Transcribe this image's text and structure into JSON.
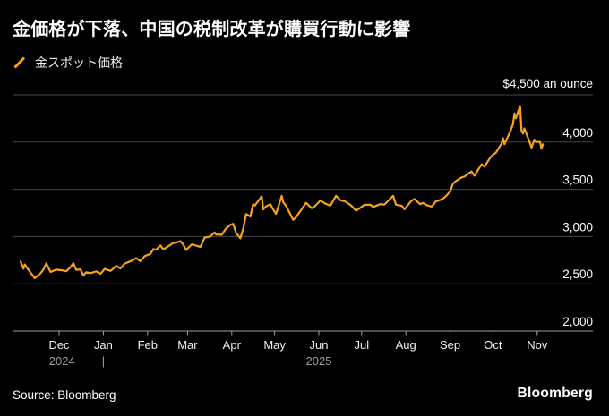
{
  "header": {
    "title": "金価格が下落、中国の税制改革が購買行動に影響",
    "legend": [
      {
        "label": "金スポット価格",
        "marker": "slash-icon",
        "color": "#F5A31E"
      }
    ]
  },
  "footer": {
    "source": "Source: Bloomberg",
    "brand": "Bloomberg"
  },
  "colors": {
    "background": "#000000",
    "accent_orange": "#F5A31E",
    "grid": "#474747",
    "axis": "#A0A0A0",
    "text_primary": "#FFFFFF",
    "text_secondary": "#9E9E9E"
  },
  "chart_data": {
    "type": "line",
    "title": "金価格が下落、中国の税制改革が購買行動に影響",
    "legend_position": "top-left",
    "grid": true,
    "series": [
      {
        "name": "金スポット価格",
        "color": "#F5A31E",
        "points": [
          [
            "2024-11-04",
            2737
          ],
          [
            "2024-11-06",
            2660
          ],
          [
            "2024-11-07",
            2705
          ],
          [
            "2024-11-11",
            2618
          ],
          [
            "2024-11-14",
            2560
          ],
          [
            "2024-11-18",
            2612
          ],
          [
            "2024-11-20",
            2651
          ],
          [
            "2024-11-22",
            2716
          ],
          [
            "2024-11-25",
            2626
          ],
          [
            "2024-11-27",
            2636
          ],
          [
            "2024-11-29",
            2650
          ],
          [
            "2024-12-03",
            2643
          ],
          [
            "2024-12-06",
            2633
          ],
          [
            "2024-12-09",
            2676
          ],
          [
            "2024-12-11",
            2718
          ],
          [
            "2024-12-13",
            2648
          ],
          [
            "2024-12-16",
            2652
          ],
          [
            "2024-12-18",
            2585
          ],
          [
            "2024-12-20",
            2622
          ],
          [
            "2024-12-23",
            2613
          ],
          [
            "2024-12-27",
            2632
          ],
          [
            "2024-12-30",
            2606
          ],
          [
            "2025-01-02",
            2658
          ],
          [
            "2025-01-06",
            2636
          ],
          [
            "2025-01-08",
            2662
          ],
          [
            "2025-01-10",
            2690
          ],
          [
            "2025-01-13",
            2663
          ],
          [
            "2025-01-16",
            2714
          ],
          [
            "2025-01-21",
            2745
          ],
          [
            "2025-01-24",
            2771
          ],
          [
            "2025-01-27",
            2741
          ],
          [
            "2025-01-30",
            2794
          ],
          [
            "2025-02-03",
            2815
          ],
          [
            "2025-02-05",
            2867
          ],
          [
            "2025-02-07",
            2861
          ],
          [
            "2025-02-10",
            2906
          ],
          [
            "2025-02-12",
            2865
          ],
          [
            "2025-02-14",
            2883
          ],
          [
            "2025-02-19",
            2933
          ],
          [
            "2025-02-21",
            2936
          ],
          [
            "2025-02-24",
            2951
          ],
          [
            "2025-02-26",
            2916
          ],
          [
            "2025-02-28",
            2858
          ],
          [
            "2025-03-04",
            2918
          ],
          [
            "2025-03-06",
            2909
          ],
          [
            "2025-03-10",
            2889
          ],
          [
            "2025-03-13",
            2989
          ],
          [
            "2025-03-17",
            3001
          ],
          [
            "2025-03-20",
            3044
          ],
          [
            "2025-03-21",
            3022
          ],
          [
            "2025-03-25",
            3019
          ],
          [
            "2025-03-28",
            3085
          ],
          [
            "2025-03-31",
            3123
          ],
          [
            "2025-04-02",
            3134
          ],
          [
            "2025-04-04",
            3038
          ],
          [
            "2025-04-07",
            2982
          ],
          [
            "2025-04-09",
            3083
          ],
          [
            "2025-04-11",
            3238
          ],
          [
            "2025-04-14",
            3211
          ],
          [
            "2025-04-16",
            3343
          ],
          [
            "2025-04-17",
            3327
          ],
          [
            "2025-04-22",
            3426
          ],
          [
            "2025-04-23",
            3288
          ],
          [
            "2025-04-25",
            3319
          ],
          [
            "2025-04-28",
            3343
          ],
          [
            "2025-04-30",
            3289
          ],
          [
            "2025-05-02",
            3240
          ],
          [
            "2025-05-06",
            3431
          ],
          [
            "2025-05-07",
            3364
          ],
          [
            "2025-05-09",
            3325
          ],
          [
            "2025-05-12",
            3236
          ],
          [
            "2025-05-14",
            3177
          ],
          [
            "2025-05-16",
            3203
          ],
          [
            "2025-05-20",
            3290
          ],
          [
            "2025-05-23",
            3357
          ],
          [
            "2025-05-27",
            3300
          ],
          [
            "2025-05-29",
            3317
          ],
          [
            "2025-06-02",
            3381
          ],
          [
            "2025-06-05",
            3353
          ],
          [
            "2025-06-09",
            3327
          ],
          [
            "2025-06-13",
            3432
          ],
          [
            "2025-06-16",
            3385
          ],
          [
            "2025-06-20",
            3368
          ],
          [
            "2025-06-24",
            3324
          ],
          [
            "2025-06-27",
            3274
          ],
          [
            "2025-06-30",
            3303
          ],
          [
            "2025-07-03",
            3336
          ],
          [
            "2025-07-07",
            3337
          ],
          [
            "2025-07-09",
            3313
          ],
          [
            "2025-07-14",
            3343
          ],
          [
            "2025-07-17",
            3339
          ],
          [
            "2025-07-23",
            3431
          ],
          [
            "2025-07-25",
            3337
          ],
          [
            "2025-07-29",
            3326
          ],
          [
            "2025-07-31",
            3289
          ],
          [
            "2025-08-05",
            3381
          ],
          [
            "2025-08-07",
            3397
          ],
          [
            "2025-08-11",
            3343
          ],
          [
            "2025-08-13",
            3356
          ],
          [
            "2025-08-15",
            3336
          ],
          [
            "2025-08-19",
            3316
          ],
          [
            "2025-08-22",
            3372
          ],
          [
            "2025-08-26",
            3393
          ],
          [
            "2025-08-28",
            3414
          ],
          [
            "2025-09-01",
            3476
          ],
          [
            "2025-09-03",
            3560
          ],
          [
            "2025-09-05",
            3587
          ],
          [
            "2025-09-09",
            3626
          ],
          [
            "2025-09-11",
            3634
          ],
          [
            "2025-09-16",
            3689
          ],
          [
            "2025-09-18",
            3644
          ],
          [
            "2025-09-23",
            3764
          ],
          [
            "2025-09-25",
            3740
          ],
          [
            "2025-09-29",
            3833
          ],
          [
            "2025-10-01",
            3866
          ],
          [
            "2025-10-03",
            3886
          ],
          [
            "2025-10-07",
            3983
          ],
          [
            "2025-10-08",
            4042
          ],
          [
            "2025-10-09",
            3976
          ],
          [
            "2025-10-13",
            4110
          ],
          [
            "2025-10-15",
            4190
          ],
          [
            "2025-10-16",
            4304
          ],
          [
            "2025-10-17",
            4251
          ],
          [
            "2025-10-20",
            4381
          ],
          [
            "2025-10-21",
            4120
          ],
          [
            "2025-10-22",
            4090
          ],
          [
            "2025-10-23",
            4145
          ],
          [
            "2025-10-27",
            3985
          ],
          [
            "2025-10-28",
            3941
          ],
          [
            "2025-10-30",
            4025
          ],
          [
            "2025-10-31",
            4002
          ],
          [
            "2025-11-03",
            4001
          ],
          [
            "2025-11-04",
            3931
          ],
          [
            "2025-11-05",
            3976
          ]
        ]
      }
    ],
    "x_axis": {
      "domain": [
        "2024-10-30",
        "2025-12-10"
      ],
      "ticks": [
        {
          "date": "2024-12-01",
          "label": "Dec"
        },
        {
          "date": "2025-01-01",
          "label": "Jan"
        },
        {
          "date": "2025-02-01",
          "label": "Feb"
        },
        {
          "date": "2025-03-01",
          "label": "Mar"
        },
        {
          "date": "2025-04-01",
          "label": "Apr"
        },
        {
          "date": "2025-05-01",
          "label": "May"
        },
        {
          "date": "2025-06-01",
          "label": "Jun"
        },
        {
          "date": "2025-07-01",
          "label": "Jul"
        },
        {
          "date": "2025-08-01",
          "label": "Aug"
        },
        {
          "date": "2025-09-01",
          "label": "Sep"
        },
        {
          "date": "2025-10-01",
          "label": "Oct"
        },
        {
          "date": "2025-11-01",
          "label": "Nov"
        }
      ],
      "year_labels": [
        {
          "date": "2024-12-03",
          "label": "2024"
        },
        {
          "date": "2025-06-01",
          "label": "2025"
        }
      ],
      "year_divider_date": "2025-01-01",
      "year_divider_glyph": "|"
    },
    "y_axis": {
      "position": "right",
      "range": [
        2000,
        4500
      ],
      "unit_label": "$4,500 an ounce",
      "gridline_values": [
        4500,
        4000,
        3500,
        3000,
        2500
      ],
      "ticks": [
        {
          "value": 4000,
          "label": "4,000"
        },
        {
          "value": 3500,
          "label": "3,500"
        },
        {
          "value": 3000,
          "label": "3,000"
        },
        {
          "value": 2500,
          "label": "2,500"
        },
        {
          "value": 2000,
          "label": "2,000"
        }
      ]
    }
  }
}
